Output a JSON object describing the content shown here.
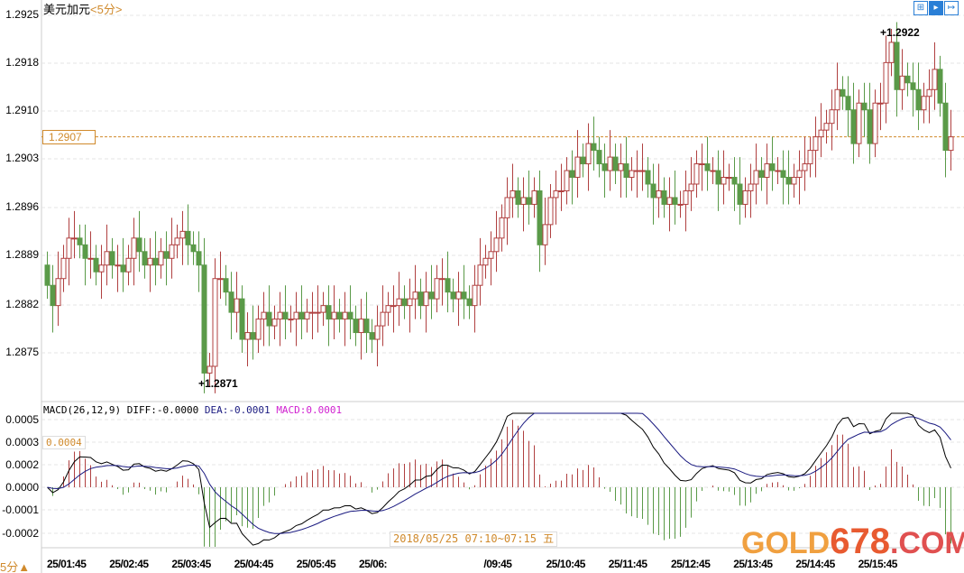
{
  "header": {
    "symbol": "美元加元",
    "period": "<5分>"
  },
  "toolbar": [
    "chart-mode-icon",
    "chart-type-icon",
    "exit-icon"
  ],
  "price_axis": {
    "labels": [
      "1.2925",
      "1.2918",
      "1.2910",
      "1.2903",
      "1.2896",
      "1.2889",
      "1.2882",
      "1.2875"
    ]
  },
  "current_price": "1.2907",
  "high_mark": "1.2922",
  "low_mark": "1.2871",
  "macd": {
    "header_params": "MACD(26,12,9)",
    "diff": "DIFF:-0.0000",
    "dea": "DEA:-0.0001",
    "macd": "MACD:0.0001",
    "cursor_value": "0.0004",
    "axis_labels": [
      "0.0005",
      "0.0003",
      "0.0002",
      "0.0000",
      "-0.0001",
      "-0.0002"
    ]
  },
  "x_axis": {
    "labels": [
      "25/01:45",
      "25/02:45",
      "25/03:45",
      "25/04:45",
      "25/05:45",
      "25/06:",
      "",
      "/09:45",
      "25/10:45",
      "25/11:45",
      "25/12:45",
      "25/13:45",
      "25/14:45",
      "25/15:45"
    ]
  },
  "tooltip": "2018/05/25 07:10~07:15 五",
  "period_button": "5分▲",
  "watermark": {
    "a": "GOLD",
    "b": "678",
    "c": ".COM"
  },
  "colors": {
    "up": "#b04040",
    "down": "#5a9a48",
    "diff": "#000000",
    "dea": "#1a1a80",
    "macd_label": "#d020d0",
    "current": "#d08a2c"
  },
  "chart_data": {
    "type": "candlestick",
    "interval": "5min",
    "ylim": [
      1.287,
      1.2927
    ],
    "closes": [
      1.2885,
      1.2882,
      1.2886,
      1.2889,
      1.2892,
      1.2892,
      1.2891,
      1.2889,
      1.2889,
      1.2887,
      1.2888,
      1.289,
      1.2888,
      1.2888,
      1.2887,
      1.2889,
      1.2892,
      1.289,
      1.2888,
      1.2889,
      1.2888,
      1.289,
      1.2889,
      1.2891,
      1.2892,
      1.2893,
      1.2891,
      1.289,
      1.2888,
      1.2872,
      1.2873,
      1.2886,
      1.2886,
      1.2884,
      1.2881,
      1.2883,
      1.2877,
      1.2878,
      1.2877,
      1.288,
      1.2881,
      1.2879,
      1.288,
      1.2881,
      1.288,
      1.288,
      1.2881,
      1.288,
      1.2881,
      1.2881,
      1.2881,
      1.2882,
      1.288,
      1.2881,
      1.288,
      1.2881,
      1.288,
      1.2878,
      1.288,
      1.2878,
      1.2877,
      1.2879,
      1.2881,
      1.2882,
      1.2882,
      1.2883,
      1.2882,
      1.2883,
      1.2884,
      1.2882,
      1.2884,
      1.2883,
      1.2886,
      1.2886,
      1.2884,
      1.2883,
      1.2884,
      1.2883,
      1.2882,
      1.2885,
      1.2888,
      1.2889,
      1.289,
      1.2892,
      1.2895,
      1.2898,
      1.2899,
      1.2897,
      1.2898,
      1.2897,
      1.2899,
      1.2891,
      1.2894,
      1.2898,
      1.2899,
      1.2899,
      1.2902,
      1.2901,
      1.2904,
      1.2903,
      1.2906,
      1.2905,
      1.2903,
      1.2902,
      1.2904,
      1.2902,
      1.2903,
      1.2901,
      1.2902,
      1.2902,
      1.2902,
      1.29,
      1.2898,
      1.2899,
      1.2897,
      1.2898,
      1.2897,
      1.2897,
      1.2899,
      1.29,
      1.2903,
      1.2903,
      1.2902,
      1.2902,
      1.29,
      1.2901,
      1.2901,
      1.29,
      1.2897,
      1.2899,
      1.29,
      1.2902,
      1.2901,
      1.2903,
      1.2902,
      1.2902,
      1.2901,
      1.29,
      1.2901,
      1.2902,
      1.2903,
      1.2905,
      1.2907,
      1.2908,
      1.2909,
      1.2911,
      1.2914,
      1.2913,
      1.2911,
      1.2906,
      1.2912,
      1.2911,
      1.2906,
      1.2912,
      1.2912,
      1.2918,
      1.2921,
      1.2914,
      1.2916,
      1.2915,
      1.2914,
      1.2911,
      1.2913,
      1.2914,
      1.2917,
      1.2912,
      1.2905,
      1.2907
    ]
  }
}
